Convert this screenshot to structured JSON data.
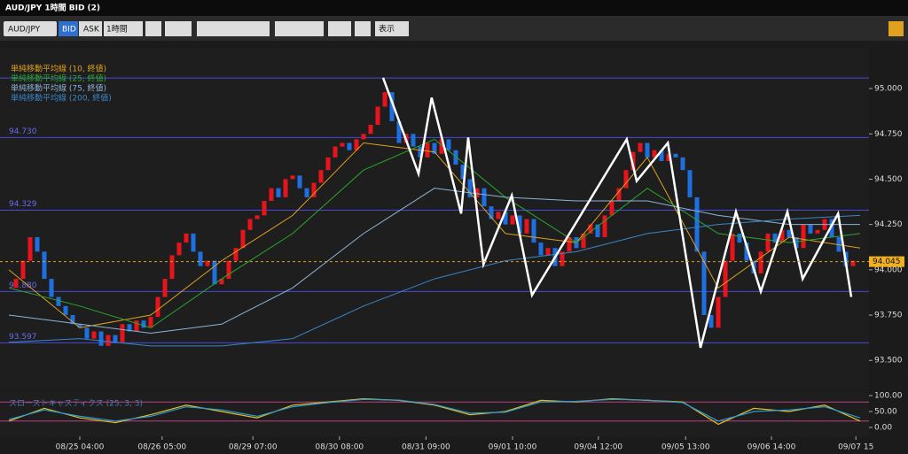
{
  "window": {
    "title": "AUD/JPY 1時間 BID (2)"
  },
  "toolbar": {
    "symbol": "AUD/JPY",
    "bid": "BID",
    "ask": "ASK",
    "interval": "1時間",
    "view": "表示"
  },
  "chart_data": {
    "type": "candlestick",
    "legend": [
      "単純移動平均線 (10, 終値)",
      "単純移動平均線 (25, 終値)",
      "単純移動平均線 (75, 終値)",
      "単純移動平均線 (200, 終値)"
    ],
    "closes": [
      93.9,
      93.95,
      94.05,
      94.18,
      94.1,
      93.95,
      93.85,
      93.8,
      93.75,
      93.7,
      93.68,
      93.62,
      93.66,
      93.58,
      93.64,
      93.6,
      93.7,
      93.66,
      93.72,
      93.68,
      93.74,
      93.85,
      93.95,
      94.08,
      94.15,
      94.2,
      94.1,
      94.02,
      94.05,
      93.92,
      93.95,
      94.05,
      94.12,
      94.22,
      94.28,
      94.3,
      94.38,
      94.45,
      94.4,
      94.5,
      94.52,
      94.45,
      94.4,
      94.48,
      94.55,
      94.62,
      94.68,
      94.7,
      94.66,
      94.72,
      94.75,
      94.8,
      94.9,
      94.98,
      94.82,
      94.7,
      94.75,
      94.68,
      94.62,
      94.7,
      94.64,
      94.72,
      94.66,
      94.58,
      94.5,
      94.4,
      94.45,
      94.35,
      94.28,
      94.32,
      94.25,
      94.3,
      94.2,
      94.28,
      94.15,
      94.08,
      94.12,
      94.02,
      94.1,
      94.18,
      94.12,
      94.2,
      94.25,
      94.18,
      94.3,
      94.38,
      94.45,
      94.55,
      94.65,
      94.7,
      94.62,
      94.66,
      94.6,
      94.64,
      94.62,
      94.55,
      94.4,
      94.1,
      93.75,
      93.68,
      93.85,
      94.05,
      94.2,
      94.15,
      94.05,
      93.98,
      94.1,
      94.2,
      94.15,
      94.22,
      94.18,
      94.12,
      94.25,
      94.2,
      94.22,
      94.28,
      94.18,
      94.1,
      94.02,
      94.05
    ],
    "up_color": "#e8141c",
    "down_color": "#1e6fe0",
    "ma_x": [
      0,
      10,
      20,
      30,
      40,
      50,
      60,
      70,
      80,
      90,
      100,
      110,
      120
    ],
    "series": [
      {
        "name": "ma10",
        "color": "#e0a020",
        "values": [
          94.0,
          93.68,
          93.75,
          94.05,
          94.3,
          94.7,
          94.65,
          94.2,
          94.15,
          94.62,
          93.9,
          94.18,
          94.12
        ]
      },
      {
        "name": "ma25",
        "color": "#2aa82a",
        "values": [
          93.9,
          93.8,
          93.68,
          93.95,
          94.2,
          94.55,
          94.72,
          94.4,
          94.15,
          94.45,
          94.2,
          94.15,
          94.2
        ]
      },
      {
        "name": "ma75",
        "color": "#8ab4d8",
        "values": [
          93.75,
          93.7,
          93.65,
          93.7,
          93.9,
          94.2,
          94.45,
          94.4,
          94.38,
          94.38,
          94.3,
          94.25,
          94.25
        ]
      },
      {
        "name": "ma200",
        "color": "#3a86c8",
        "values": [
          93.6,
          93.62,
          93.58,
          93.58,
          93.62,
          93.8,
          93.95,
          94.05,
          94.1,
          94.2,
          94.25,
          94.28,
          94.3
        ]
      }
    ],
    "zigzag": {
      "color": "#ffffff",
      "x": [
        52.75,
        57.75,
        59.6,
        63.75,
        64.75,
        66.9,
        70.9,
        73.75,
        87.1,
        88.5,
        92.9,
        97.5,
        102.5,
        106,
        109.75,
        111.9,
        116.9,
        118.75
      ],
      "values": [
        95.06,
        94.53,
        94.95,
        94.31,
        94.73,
        94.03,
        94.41,
        93.86,
        94.72,
        94.49,
        94.7,
        93.57,
        94.32,
        93.88,
        94.32,
        93.95,
        94.31,
        93.85
      ]
    },
    "levels": [
      {
        "value": 95.058
      },
      {
        "value": 94.73,
        "label": "94.730"
      },
      {
        "value": 94.329,
        "label": "94.329"
      },
      {
        "value": 93.88,
        "label": "93.880"
      },
      {
        "value": 93.597,
        "label": "93.597"
      }
    ],
    "current": {
      "value": 94.045,
      "label": "94.045"
    },
    "xlim": [
      0,
      120
    ],
    "ylim": [
      93.34,
      95.22
    ],
    "yticks": [
      {
        "value": 95,
        "label": "95.000"
      },
      {
        "value": 94.75,
        "label": "94.750"
      },
      {
        "value": 94.5,
        "label": "94.500"
      },
      {
        "value": 94.25,
        "label": "94.250"
      },
      {
        "value": 94,
        "label": "94.000"
      },
      {
        "value": 93.75,
        "label": "93.750"
      },
      {
        "value": 93.5,
        "label": "93.500"
      }
    ],
    "xticks": [
      {
        "value": 10,
        "label": "08/25 04:00"
      },
      {
        "value": 21.6,
        "label": "08/26 05:00"
      },
      {
        "value": 34.4,
        "label": "08/29 07:00"
      },
      {
        "value": 46.6,
        "label": "08/30 08:00"
      },
      {
        "value": 58.8,
        "label": "08/31 09:00"
      },
      {
        "value": 71,
        "label": "09/01 10:00"
      },
      {
        "value": 83.1,
        "label": "09/04 12:00"
      },
      {
        "value": 95.4,
        "label": "09/05 13:00"
      },
      {
        "value": 107.5,
        "label": "09/06 14:00"
      },
      {
        "value": 119.4,
        "label": "09/07 15"
      }
    ],
    "stochastic": {
      "title": "スローストキャスティクス (25, 3, 3)",
      "x": [
        0,
        5,
        10,
        15,
        20,
        25,
        30,
        35,
        40,
        45,
        50,
        55,
        60,
        65,
        70,
        75,
        80,
        85,
        90,
        95,
        100,
        105,
        110,
        115,
        120
      ],
      "ylim": [
        0,
        100
      ],
      "yticks": [
        {
          "value": 100,
          "label": "100.00"
        },
        {
          "value": 50,
          "label": "50.00"
        },
        {
          "value": 0,
          "label": "0.00"
        }
      ],
      "bands": [
        80,
        20
      ],
      "series": [
        {
          "name": "k",
          "color": "#e0c020",
          "values": [
            20,
            60,
            30,
            15,
            40,
            70,
            50,
            30,
            70,
            80,
            90,
            85,
            70,
            40,
            50,
            85,
            80,
            90,
            85,
            80,
            10,
            60,
            50,
            70,
            20
          ]
        },
        {
          "name": "d",
          "color": "#2a9ad8",
          "values": [
            25,
            55,
            35,
            20,
            35,
            65,
            55,
            35,
            65,
            78,
            88,
            86,
            72,
            45,
            48,
            80,
            82,
            88,
            86,
            78,
            20,
            50,
            55,
            65,
            30
          ]
        }
      ]
    }
  }
}
